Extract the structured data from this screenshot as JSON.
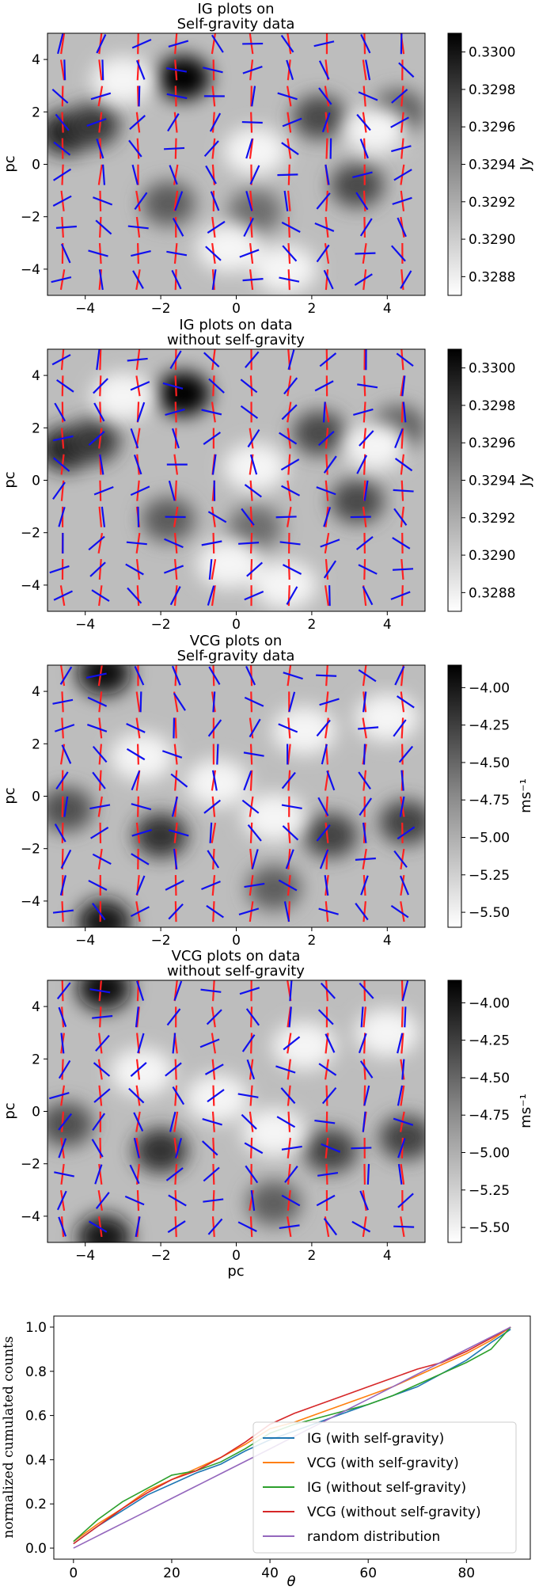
{
  "panels": [
    {
      "title_lines": [
        "IG plots on",
        "Self-gravity data"
      ],
      "ylabel": "pc",
      "xlabel": "",
      "x_ticks": [
        "−4",
        "−2",
        "0",
        "2",
        "4"
      ],
      "y_ticks": [
        "4",
        "2",
        "0",
        "−2",
        "−4"
      ],
      "cbar_label": "Jy",
      "cbar_ticks": [
        "0.3300",
        "0.3298",
        "0.3296",
        "0.3294",
        "0.3292",
        "0.3290",
        "0.3288"
      ]
    },
    {
      "title_lines": [
        "IG plots on data",
        "without self-gravity"
      ],
      "ylabel": "pc",
      "xlabel": "",
      "x_ticks": [
        "−4",
        "−2",
        "0",
        "2",
        "4"
      ],
      "y_ticks": [
        "4",
        "2",
        "0",
        "−2",
        "−4"
      ],
      "cbar_label": "Jy",
      "cbar_ticks": [
        "0.3300",
        "0.3298",
        "0.3296",
        "0.3294",
        "0.3292",
        "0.3290",
        "0.3288"
      ]
    },
    {
      "title_lines": [
        "VCG plots on",
        "Self-gravity data"
      ],
      "ylabel": "pc",
      "xlabel": "",
      "x_ticks": [
        "−4",
        "−2",
        "0",
        "2",
        "4"
      ],
      "y_ticks": [
        "4",
        "2",
        "0",
        "−2",
        "−4"
      ],
      "cbar_label": "ms⁻¹",
      "cbar_ticks": [
        "−4.00",
        "−4.25",
        "−4.50",
        "−4.75",
        "−5.00",
        "−5.25",
        "−5.50"
      ]
    },
    {
      "title_lines": [
        "VCG plots on data",
        "without self-gravity"
      ],
      "ylabel": "pc",
      "xlabel": "pc",
      "x_ticks": [
        "−4",
        "−2",
        "0",
        "2",
        "4"
      ],
      "y_ticks": [
        "4",
        "2",
        "0",
        "−2",
        "−4"
      ],
      "cbar_label": "ms⁻¹",
      "cbar_ticks": [
        "−4.00",
        "−4.25",
        "−4.50",
        "−4.75",
        "−5.00",
        "−5.25",
        "−5.50"
      ]
    }
  ],
  "colors": {
    "ig_vectors": "#ff2020",
    "compare_vectors": "#1010ee",
    "ig_with_sg": "#1f77b4",
    "vcg_with_sg": "#ff7f0e",
    "ig_without_sg": "#2ca02c",
    "vcg_without_sg": "#d62728",
    "random": "#9467bd"
  },
  "chart_data": [
    {
      "type": "heatmap",
      "title": "IG plots on Self-gravity data",
      "xlabel": "",
      "ylabel": "pc",
      "xlim": [
        -5,
        5
      ],
      "ylim": [
        -5,
        5
      ],
      "colorbar": {
        "label": "Jy",
        "range": [
          0.3287,
          0.3301
        ]
      },
      "grayscale_blobs": [
        {
          "x": -4.5,
          "y": 1.2,
          "value": 0.3299
        },
        {
          "x": -3.8,
          "y": 1.5,
          "value": 0.3298
        },
        {
          "x": -1.4,
          "y": 3.3,
          "value": 0.3301
        },
        {
          "x": 2.2,
          "y": 1.8,
          "value": 0.3297
        },
        {
          "x": 3.2,
          "y": -0.8,
          "value": 0.3297
        },
        {
          "x": -1.8,
          "y": -1.5,
          "value": 0.3296
        },
        {
          "x": 0.5,
          "y": -1.8,
          "value": 0.3295
        },
        {
          "x": 4.3,
          "y": 2.0,
          "value": 0.3296
        }
      ]
    },
    {
      "type": "heatmap",
      "title": "IG plots on data without self-gravity",
      "xlabel": "",
      "ylabel": "pc",
      "xlim": [
        -5,
        5
      ],
      "ylim": [
        -5,
        5
      ],
      "colorbar": {
        "label": "Jy",
        "range": [
          0.3287,
          0.3301
        ]
      },
      "grayscale_blobs": [
        {
          "x": -4.5,
          "y": 1.2,
          "value": 0.3299
        },
        {
          "x": -3.8,
          "y": 1.5,
          "value": 0.3298
        },
        {
          "x": -1.4,
          "y": 3.3,
          "value": 0.3301
        },
        {
          "x": 2.2,
          "y": 1.8,
          "value": 0.3297
        },
        {
          "x": 3.2,
          "y": -0.8,
          "value": 0.3297
        },
        {
          "x": -1.8,
          "y": -1.5,
          "value": 0.3296
        },
        {
          "x": 0.5,
          "y": -1.8,
          "value": 0.3295
        },
        {
          "x": 4.3,
          "y": 2.0,
          "value": 0.3296
        }
      ]
    },
    {
      "type": "heatmap",
      "title": "VCG plots on Self-gravity data",
      "xlabel": "",
      "ylabel": "pc",
      "xlim": [
        -5,
        5
      ],
      "ylim": [
        -5,
        5
      ],
      "colorbar": {
        "label": "ms⁻¹",
        "range": [
          -5.6,
          -3.85
        ]
      },
      "grayscale_blobs": [
        {
          "x": -3.5,
          "y": 4.7,
          "value": -3.9
        },
        {
          "x": -2.0,
          "y": -1.5,
          "value": -4.2
        },
        {
          "x": -4.5,
          "y": -0.5,
          "value": -4.4
        },
        {
          "x": 2.5,
          "y": -1.5,
          "value": -4.3
        },
        {
          "x": 4.5,
          "y": -1.0,
          "value": -4.3
        },
        {
          "x": -3.5,
          "y": -4.8,
          "value": -4.0
        },
        {
          "x": 1.0,
          "y": -3.5,
          "value": -4.5
        }
      ]
    },
    {
      "type": "heatmap",
      "title": "VCG plots on data without self-gravity",
      "xlabel": "pc",
      "ylabel": "pc",
      "xlim": [
        -5,
        5
      ],
      "ylim": [
        -5,
        5
      ],
      "colorbar": {
        "label": "ms⁻¹",
        "range": [
          -5.6,
          -3.85
        ]
      },
      "grayscale_blobs": [
        {
          "x": -3.5,
          "y": 4.7,
          "value": -3.9
        },
        {
          "x": -2.0,
          "y": -1.5,
          "value": -4.2
        },
        {
          "x": -4.5,
          "y": -0.5,
          "value": -4.4
        },
        {
          "x": 2.5,
          "y": -1.5,
          "value": -4.3
        },
        {
          "x": 4.5,
          "y": -1.0,
          "value": -4.3
        },
        {
          "x": -3.5,
          "y": -4.8,
          "value": -4.0
        },
        {
          "x": 1.0,
          "y": -3.5,
          "value": -4.5
        }
      ]
    },
    {
      "type": "line",
      "title": "",
      "xlabel": "θ",
      "ylabel": "normalized cumulated counts",
      "xlim": [
        -4,
        93
      ],
      "ylim": [
        -0.05,
        1.05
      ],
      "x_ticks": [
        "0",
        "20",
        "40",
        "60",
        "80"
      ],
      "y_ticks": [
        "0.0",
        "0.2",
        "0.4",
        "0.6",
        "0.8",
        "1.0"
      ],
      "legend_position": "lower-right",
      "x": [
        0,
        5,
        10,
        15,
        20,
        25,
        30,
        35,
        40,
        45,
        50,
        55,
        60,
        65,
        70,
        75,
        80,
        85,
        89
      ],
      "series": [
        {
          "name": "IG (with self-gravity)",
          "values": [
            0.02,
            0.1,
            0.17,
            0.24,
            0.29,
            0.34,
            0.38,
            0.44,
            0.49,
            0.53,
            0.57,
            0.61,
            0.65,
            0.69,
            0.73,
            0.79,
            0.85,
            0.93,
            0.99
          ]
        },
        {
          "name": "VCG (with self-gravity)",
          "values": [
            0.03,
            0.11,
            0.18,
            0.26,
            0.31,
            0.36,
            0.41,
            0.47,
            0.54,
            0.57,
            0.61,
            0.65,
            0.69,
            0.73,
            0.78,
            0.83,
            0.88,
            0.94,
            1.0
          ]
        },
        {
          "name": "IG (without self-gravity)",
          "values": [
            0.03,
            0.13,
            0.21,
            0.27,
            0.33,
            0.35,
            0.39,
            0.45,
            0.52,
            0.56,
            0.59,
            0.62,
            0.65,
            0.69,
            0.74,
            0.79,
            0.84,
            0.9,
            1.0
          ]
        },
        {
          "name": "VCG (without self-gravity)",
          "values": [
            0.02,
            0.1,
            0.18,
            0.25,
            0.31,
            0.35,
            0.41,
            0.48,
            0.56,
            0.61,
            0.65,
            0.69,
            0.73,
            0.77,
            0.81,
            0.84,
            0.89,
            0.95,
            1.0
          ]
        },
        {
          "name": "random distribution",
          "values": [
            0.0,
            0.056,
            0.112,
            0.168,
            0.225,
            0.281,
            0.337,
            0.393,
            0.449,
            0.506,
            0.562,
            0.618,
            0.674,
            0.73,
            0.787,
            0.843,
            0.899,
            0.955,
            1.0
          ]
        }
      ]
    }
  ]
}
